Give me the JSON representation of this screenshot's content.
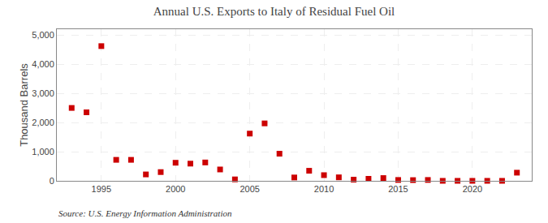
{
  "chart_data": {
    "type": "scatter",
    "title": "Annual U.S. Exports to Italy of Residual Fuel Oil",
    "ylabel": "Thousand Barrels",
    "annotations": [
      "Source: U.S. Energy Information Administration"
    ],
    "x": [
      1993,
      1994,
      1995,
      1996,
      1997,
      1998,
      1999,
      2000,
      2001,
      2002,
      2003,
      2004,
      2005,
      2006,
      2007,
      2008,
      2009,
      2010,
      2011,
      2012,
      2013,
      2014,
      2015,
      2016,
      2017,
      2018,
      2019,
      2020,
      2021,
      2022,
      2023
    ],
    "values": [
      2500,
      2350,
      4620,
      720,
      720,
      220,
      300,
      620,
      590,
      630,
      390,
      50,
      1620,
      1970,
      930,
      115,
      345,
      195,
      120,
      40,
      70,
      95,
      30,
      25,
      30,
      0,
      0,
      0,
      0,
      0,
      280
    ],
    "color": "#cc0000",
    "marker": "square",
    "xlim": [
      1992,
      2024
    ],
    "ylim": [
      0,
      5200
    ],
    "xticks": [
      1995,
      2000,
      2005,
      2010,
      2015,
      2020
    ],
    "yticks": [
      0,
      {
        "value": 1000,
        "label": "1,000"
      },
      {
        "value": 2000,
        "label": "2,000"
      },
      {
        "value": 3000,
        "label": "3,000"
      },
      {
        "value": 4000,
        "label": "4,000"
      },
      {
        "value": 5000,
        "label": "5,000"
      }
    ],
    "grid": true
  }
}
